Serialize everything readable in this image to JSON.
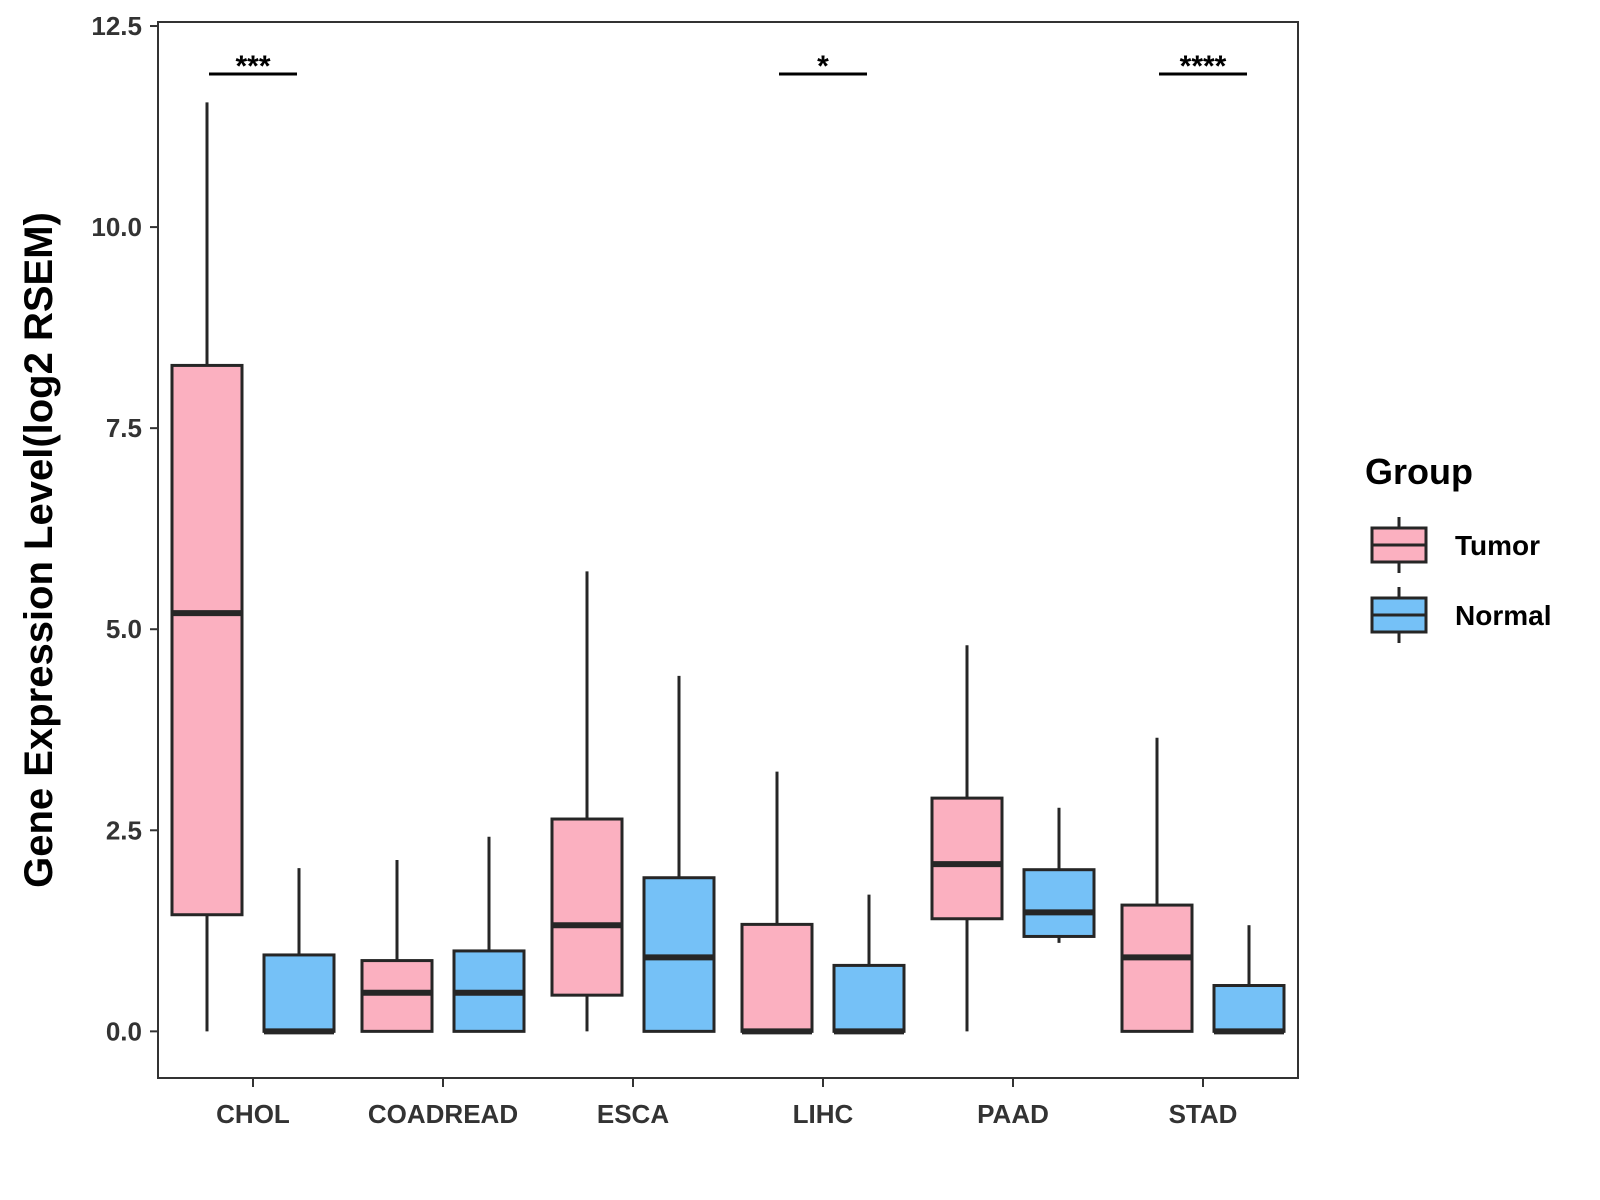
{
  "chart_data": {
    "type": "boxplot",
    "title": "",
    "xlabel": "",
    "ylabel": "Gene Expression Level(log2 RSEM)",
    "ylim": [
      -0.58,
      12.55
    ],
    "y_ticks": [
      0.0,
      2.5,
      5.0,
      7.5,
      10.0,
      12.5
    ],
    "y_tick_labels": [
      "0.0",
      "2.5",
      "5.0",
      "7.5",
      "10.0",
      "12.5"
    ],
    "categories": [
      "CHOL",
      "COADREAD",
      "ESCA",
      "LIHC",
      "PAAD",
      "STAD"
    ],
    "legend": {
      "title": "Group",
      "position": "right",
      "entries": [
        {
          "name": "Tumor",
          "color": "#FBB0C0"
        },
        {
          "name": "Normal",
          "color": "#75C1F7"
        }
      ]
    },
    "series": [
      {
        "name": "Tumor",
        "color": "#FBB0C0",
        "boxes": [
          {
            "category": "CHOL",
            "whisker_low": 0.0,
            "q1": 1.45,
            "median": 5.2,
            "q3": 8.28,
            "whisker_high": 11.55
          },
          {
            "category": "COADREAD",
            "whisker_low": 0.0,
            "q1": 0.0,
            "median": 0.48,
            "q3": 0.88,
            "whisker_high": 2.13
          },
          {
            "category": "ESCA",
            "whisker_low": 0.0,
            "q1": 0.45,
            "median": 1.32,
            "q3": 2.64,
            "whisker_high": 5.72
          },
          {
            "category": "LIHC",
            "whisker_low": 0.0,
            "q1": 0.0,
            "median": 0.0,
            "q3": 1.33,
            "whisker_high": 3.23
          },
          {
            "category": "PAAD",
            "whisker_low": 0.0,
            "q1": 1.4,
            "median": 2.08,
            "q3": 2.9,
            "whisker_high": 4.8
          },
          {
            "category": "STAD",
            "whisker_low": 0.0,
            "q1": 0.0,
            "median": 0.92,
            "q3": 1.57,
            "whisker_high": 3.65
          }
        ]
      },
      {
        "name": "Normal",
        "color": "#75C1F7",
        "boxes": [
          {
            "category": "CHOL",
            "whisker_low": 0.0,
            "q1": 0.0,
            "median": 0.0,
            "q3": 0.95,
            "whisker_high": 2.03
          },
          {
            "category": "COADREAD",
            "whisker_low": 0.0,
            "q1": 0.0,
            "median": 0.48,
            "q3": 1.0,
            "whisker_high": 2.42
          },
          {
            "category": "ESCA",
            "whisker_low": 0.0,
            "q1": 0.0,
            "median": 0.92,
            "q3": 1.91,
            "whisker_high": 4.42
          },
          {
            "category": "LIHC",
            "whisker_low": 0.0,
            "q1": 0.0,
            "median": 0.0,
            "q3": 0.82,
            "whisker_high": 1.7
          },
          {
            "category": "PAAD",
            "whisker_low": 1.1,
            "q1": 1.18,
            "median": 1.48,
            "q3": 2.01,
            "whisker_high": 2.78
          },
          {
            "category": "STAD",
            "whisker_low": 0.0,
            "q1": 0.0,
            "median": 0.0,
            "q3": 0.57,
            "whisker_high": 1.32
          }
        ]
      }
    ],
    "annotations": [
      {
        "category": "CHOL",
        "text": "***"
      },
      {
        "category": "LIHC",
        "text": "*"
      },
      {
        "category": "STAD",
        "text": "****"
      }
    ]
  }
}
